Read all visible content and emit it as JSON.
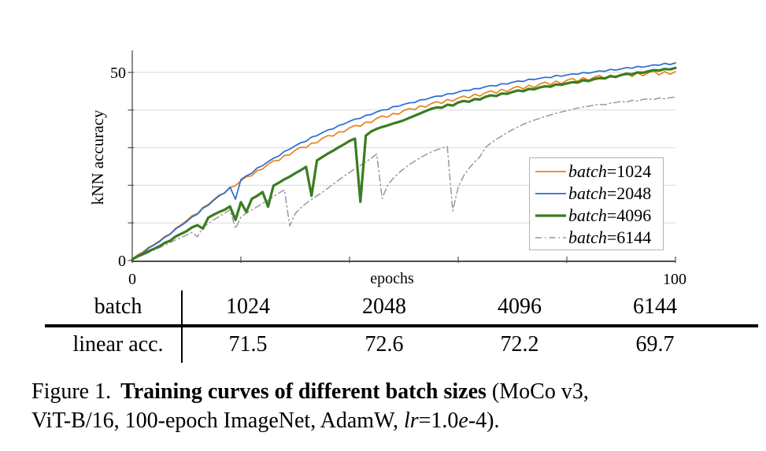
{
  "colors": {
    "grid": "#d9d9d9",
    "axis": "#4d4d4d",
    "orange": "#e6831c",
    "blue": "#2b6bd3",
    "green": "#3a7d20",
    "gray": "#999999"
  },
  "chart_data": {
    "type": "line",
    "title": "",
    "xlabel": "epochs",
    "ylabel": "kNN accuracy",
    "xlim": [
      0,
      100
    ],
    "ylim": [
      0,
      55.5
    ],
    "grid": "horizontal",
    "grid_y": [
      10,
      20,
      30,
      40,
      50
    ],
    "yticks": [
      0,
      10,
      20,
      30,
      40,
      50
    ],
    "xticks": [
      0,
      20,
      40,
      60,
      80,
      100
    ],
    "ytick_labels": [
      {
        "value": 50,
        "label": "50"
      },
      {
        "value": 0,
        "label": "0"
      }
    ],
    "xtick_labels": [
      {
        "value": 0,
        "label": "0"
      },
      {
        "value": 100,
        "label": "100"
      }
    ],
    "legend_position": "right-middle",
    "epoch_step": 1,
    "series": [
      {
        "id": "batch-1024",
        "label_word": "batch",
        "label_value": "=1024",
        "color": "#e6831c",
        "width": 1.7,
        "dash": "none",
        "values": [
          0.4,
          1.5,
          2.3,
          3.5,
          4.2,
          5.2,
          6.4,
          7.1,
          8.6,
          9.5,
          10.6,
          11.9,
          12.5,
          14.1,
          14.9,
          16.2,
          17.4,
          17.9,
          19.4,
          19.9,
          21.2,
          22.3,
          22.5,
          23.9,
          24.3,
          25.6,
          26.5,
          26.6,
          27.9,
          28.1,
          29.3,
          30.1,
          30.0,
          31.2,
          31.3,
          32.5,
          33.2,
          33.1,
          34.2,
          34.2,
          35.3,
          35.9,
          35.7,
          36.8,
          36.7,
          37.8,
          38.4,
          38.1,
          39.1,
          38.9,
          39.9,
          40.4,
          40.1,
          41.1,
          40.8,
          41.7,
          42.2,
          41.8,
          42.8,
          42.4,
          43.2,
          43.7,
          43.2,
          44.2,
          43.7,
          44.6,
          45.1,
          44.5,
          45.5,
          44.9,
          45.8,
          46.3,
          45.6,
          46.6,
          46.0,
          46.9,
          47.4,
          46.7,
          47.7,
          47.0,
          47.9,
          48.4,
          47.6,
          48.6,
          47.9,
          48.7,
          49.2,
          48.3,
          49.3,
          48.6,
          49.4,
          49.9,
          48.9,
          49.9,
          49.1,
          49.9,
          50.4,
          49.3,
          50.2,
          49.5,
          50.2
        ]
      },
      {
        "id": "batch-2048",
        "label_word": "batch",
        "label_value": "=2048",
        "color": "#2b6bd3",
        "width": 1.7,
        "dash": "none",
        "values": [
          0.4,
          1.3,
          2.1,
          3.3,
          4.1,
          5.0,
          6.2,
          7.0,
          8.4,
          9.3,
          10.3,
          11.6,
          12.3,
          13.9,
          14.7,
          16.0,
          17.2,
          18.0,
          19.5,
          16.3,
          21.5,
          22.5,
          23.2,
          24.6,
          25.2,
          26.3,
          27.2,
          27.8,
          29.0,
          29.6,
          30.5,
          31.3,
          31.7,
          32.8,
          33.2,
          34.0,
          34.7,
          35.0,
          35.9,
          36.3,
          37.0,
          37.6,
          37.8,
          38.6,
          38.8,
          39.5,
          40.0,
          40.1,
          40.9,
          41.0,
          41.5,
          41.9,
          42.0,
          42.7,
          42.8,
          43.3,
          43.7,
          43.7,
          44.3,
          44.3,
          44.8,
          45.2,
          45.2,
          45.7,
          45.7,
          46.2,
          46.5,
          46.4,
          47.0,
          46.9,
          47.4,
          47.7,
          47.6,
          48.2,
          48.1,
          48.4,
          48.7,
          48.6,
          49.2,
          49.0,
          49.3,
          49.6,
          49.5,
          50.0,
          49.8,
          50.1,
          50.4,
          50.3,
          50.8,
          50.6,
          50.9,
          51.3,
          51.1,
          51.6,
          51.4,
          51.7,
          52.0,
          51.9,
          52.4,
          52.1,
          52.5
        ]
      },
      {
        "id": "batch-4096",
        "label_word": "batch",
        "label_value": "=4096",
        "color": "#3a7d20",
        "width": 3.2,
        "dash": "none",
        "values": [
          0.3,
          1.1,
          1.7,
          2.5,
          3.1,
          3.8,
          4.7,
          5.3,
          6.4,
          7.1,
          7.8,
          8.8,
          9.4,
          8.5,
          11.4,
          12.2,
          12.9,
          13.5,
          14.4,
          10.8,
          15.5,
          12.9,
          16.4,
          17.2,
          18.2,
          14.3,
          19.9,
          20.7,
          21.6,
          22.3,
          23.2,
          24.0,
          24.9,
          17.2,
          26.6,
          27.5,
          28.4,
          29.2,
          30.1,
          30.9,
          31.8,
          32.4,
          15.6,
          33.2,
          34.3,
          35.0,
          35.5,
          35.9,
          36.4,
          36.8,
          37.3,
          37.9,
          38.5,
          39.1,
          39.7,
          40.3,
          40.7,
          40.6,
          41.4,
          41.2,
          42.0,
          42.4,
          42.2,
          42.9,
          42.8,
          43.5,
          43.9,
          43.7,
          44.4,
          44.3,
          44.8,
          45.2,
          45.0,
          45.6,
          45.5,
          46.0,
          46.3,
          46.2,
          46.8,
          46.7,
          47.1,
          47.4,
          47.3,
          47.9,
          47.7,
          48.2,
          48.5,
          48.4,
          49.0,
          48.8,
          49.3,
          49.6,
          49.5,
          50.0,
          49.9,
          50.3,
          50.6,
          50.5,
          50.9,
          50.8,
          51.2
        ]
      },
      {
        "id": "batch-6144",
        "label_word": "batch",
        "label_value": "=6144",
        "color": "#999999",
        "width": 1.5,
        "dash": "8 4 1.5 4",
        "values": [
          0.3,
          0.9,
          1.5,
          2.1,
          2.8,
          3.4,
          4.1,
          4.8,
          5.5,
          6.1,
          6.8,
          7.5,
          6.3,
          8.9,
          9.8,
          10.8,
          11.7,
          12.6,
          13.5,
          8.5,
          11.5,
          12.6,
          13.4,
          14.3,
          15.2,
          16.0,
          17.0,
          17.9,
          18.8,
          9.2,
          12.5,
          14.0,
          15.2,
          16.2,
          17.2,
          18.1,
          19.2,
          20.3,
          21.4,
          22.4,
          23.4,
          24.4,
          25.3,
          26.2,
          27.2,
          28.3,
          16.5,
          20.0,
          21.8,
          23.2,
          24.4,
          25.5,
          26.4,
          27.3,
          28.1,
          28.8,
          29.4,
          29.9,
          30.3,
          13.2,
          19.5,
          22.5,
          24.5,
          26.2,
          27.6,
          30.0,
          31.2,
          32.2,
          33.1,
          34.0,
          34.8,
          35.5,
          36.2,
          36.8,
          37.3,
          37.8,
          38.3,
          38.7,
          39.1,
          39.5,
          39.8,
          40.2,
          40.5,
          40.8,
          41.0,
          41.3,
          41.5,
          41.4,
          41.8,
          42.0,
          42.3,
          42.1,
          42.6,
          42.4,
          42.8,
          43.0,
          42.8,
          43.2,
          43.0,
          43.3,
          43.4
        ]
      }
    ]
  },
  "results_table": {
    "header_row": [
      "batch",
      "1024",
      "2048",
      "4096",
      "6144"
    ],
    "value_row": [
      "linear acc.",
      "71.5",
      "72.6",
      "72.2",
      "69.7"
    ]
  },
  "caption": {
    "figure_label": "Figure 1.",
    "bold_text": "Training curves of different batch sizes",
    "after_bold": " (MoCo v3,",
    "line2_start": "ViT-B/16, 100-epoch ImageNet, AdamW, ",
    "lr_italic": "lr",
    "eq_part": "=1.0",
    "e_italic": "e",
    "tail": "-4)."
  }
}
